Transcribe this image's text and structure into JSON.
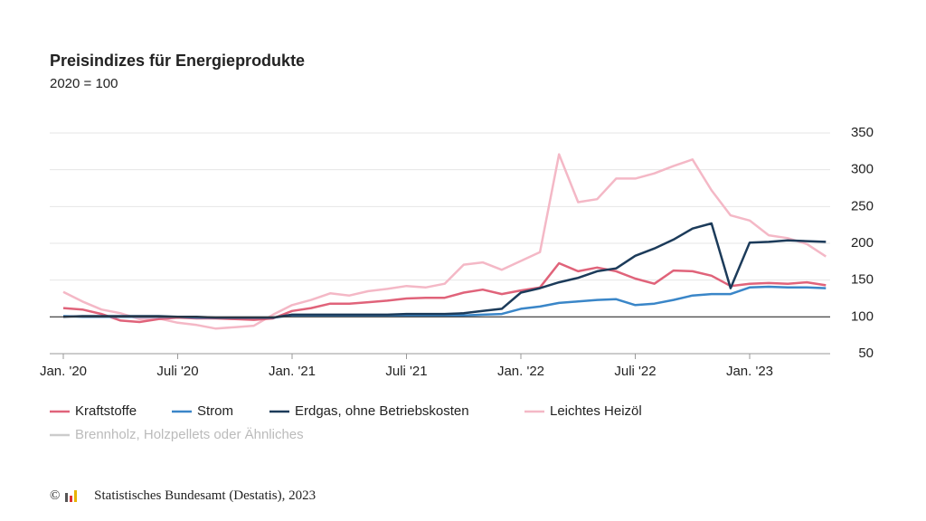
{
  "chart_data": {
    "type": "line",
    "title": "Preisindizes für Energieprodukte",
    "subtitle": "2020 = 100",
    "categories": [
      "Jan. '20",
      null,
      null,
      null,
      null,
      null,
      "Juli '20",
      null,
      null,
      null,
      null,
      null,
      "Jan. '21",
      null,
      null,
      null,
      null,
      null,
      "Juli '21",
      null,
      null,
      null,
      null,
      null,
      "Jan. '22",
      null,
      null,
      null,
      null,
      null,
      "Juli '22",
      null,
      null,
      null,
      null,
      null,
      "Jan. '23",
      null,
      null,
      null,
      null
    ],
    "series": [
      {
        "name": "Kraftstoffe",
        "color": "#e0637a",
        "visible": true,
        "values": [
          112,
          110,
          104,
          95,
          93,
          97,
          99,
          98,
          98,
          97,
          96,
          98,
          108,
          112,
          118,
          118,
          120,
          122,
          125,
          126,
          126,
          133,
          137,
          131,
          136,
          140,
          173,
          162,
          167,
          162,
          152,
          145,
          163,
          162,
          156,
          142,
          145,
          146,
          145,
          147,
          143
        ]
      },
      {
        "name": "Strom",
        "color": "#3a86c8",
        "visible": true,
        "values": [
          101,
          100,
          100,
          100,
          100,
          100,
          100,
          99,
          99,
          99,
          99,
          99,
          102,
          102,
          102,
          102,
          102,
          102,
          102,
          102,
          102,
          102,
          103,
          104,
          111,
          114,
          119,
          121,
          123,
          124,
          116,
          118,
          123,
          129,
          131,
          131,
          140,
          141,
          140,
          140,
          139
        ]
      },
      {
        "name": "Erdgas, ohne Betriebskosten",
        "color": "#1c3b5a",
        "visible": true,
        "values": [
          100,
          101,
          101,
          101,
          101,
          101,
          100,
          100,
          99,
          99,
          99,
          99,
          103,
          103,
          103,
          103,
          103,
          103,
          104,
          104,
          104,
          105,
          108,
          111,
          133,
          139,
          147,
          153,
          162,
          166,
          183,
          193,
          205,
          220,
          227,
          139,
          201,
          202,
          204,
          203,
          202
        ]
      },
      {
        "name": "Leichtes Heizöl",
        "color": "#f4b8c6",
        "visible": true,
        "values": [
          134,
          121,
          110,
          105,
          97,
          98,
          92,
          89,
          84,
          86,
          88,
          103,
          116,
          123,
          132,
          129,
          135,
          138,
          142,
          140,
          145,
          171,
          174,
          164,
          176,
          188,
          321,
          256,
          260,
          288,
          288,
          295,
          305,
          314,
          272,
          238,
          231,
          211,
          207,
          199,
          182
        ]
      },
      {
        "name": "Brennholz, Holzpellets oder Ähnliches",
        "color": "#cccccc",
        "visible": false,
        "values": [
          null,
          null,
          null,
          null,
          null,
          null,
          null,
          null,
          null,
          null,
          null,
          null,
          null,
          null,
          null,
          null,
          null,
          null,
          null,
          null,
          null,
          null,
          null,
          null,
          null,
          null,
          null,
          null,
          null,
          null,
          null,
          null,
          null,
          null,
          null,
          null,
          null,
          null,
          null,
          null,
          null
        ]
      }
    ],
    "ylim": [
      50,
      350
    ],
    "yticks": [
      50,
      100,
      150,
      200,
      250,
      300,
      350
    ],
    "grid": true,
    "reference_line": 100,
    "legend": "bottom",
    "source": "© Statistisches Bundesamt (Destatis), 2023"
  }
}
